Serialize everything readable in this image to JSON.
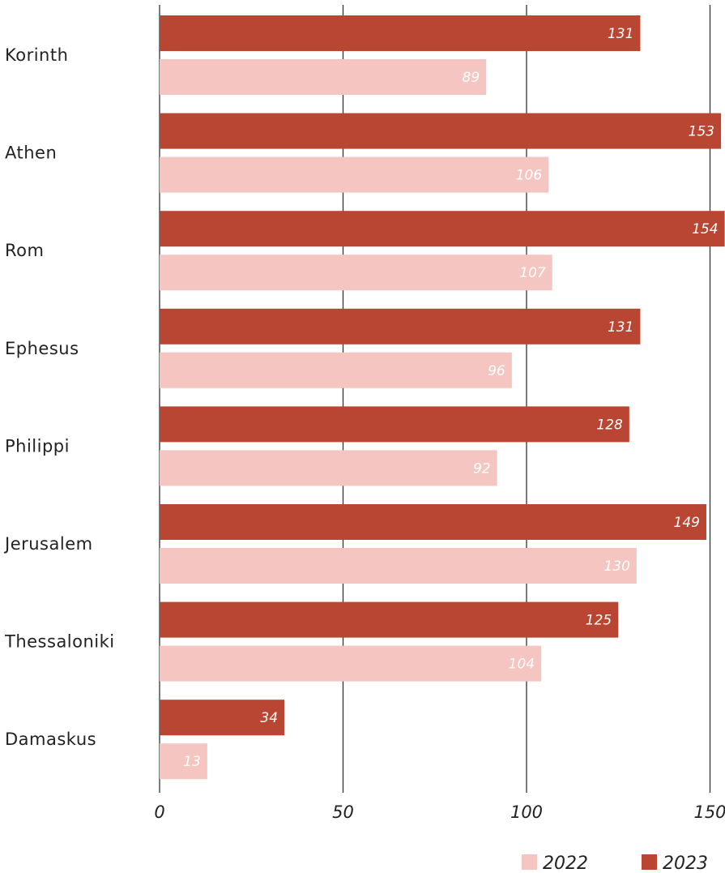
{
  "chart_data": {
    "type": "bar",
    "orientation": "horizontal",
    "categories": [
      "Korinth",
      "Athen",
      "Rom",
      "Ephesus",
      "Philippi",
      "Jerusalem",
      "Thessaloniki",
      "Damaskus"
    ],
    "series": [
      {
        "name": "2023",
        "values": [
          131,
          153,
          154,
          131,
          128,
          149,
          125,
          34
        ],
        "color": "#b94632"
      },
      {
        "name": "2022",
        "values": [
          89,
          106,
          107,
          96,
          92,
          130,
          104,
          13
        ],
        "color": "#f5c6c1"
      }
    ],
    "x_ticks": [
      "0",
      "50",
      "100",
      "150"
    ],
    "xlim": [
      0,
      154
    ],
    "grid": true,
    "legend": {
      "position": "bottom-right",
      "order": [
        "2022",
        "2023"
      ]
    },
    "title": "",
    "xlabel": "",
    "ylabel": ""
  }
}
